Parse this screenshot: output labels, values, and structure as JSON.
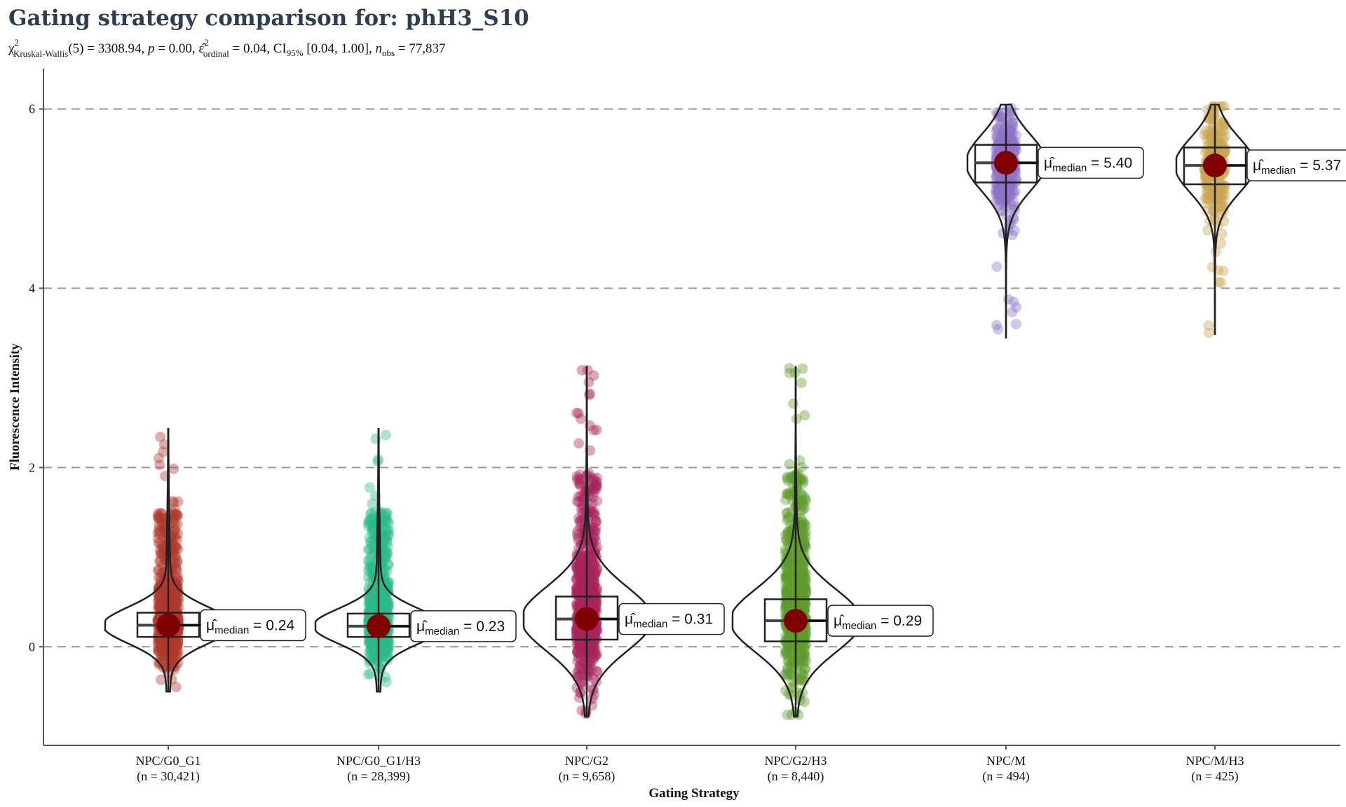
{
  "chart_data": {
    "type": "violin",
    "title": "Gating strategy comparison for: phH3_S10",
    "subtitle": {
      "chi": "χ",
      "chi_sup": "2",
      "chi_sub": "Kruskal-Wallis",
      "part1": "(5) = 3308.94, ",
      "p_sym": "p",
      "part2": " = 0.00, ",
      "eps": "ε̂",
      "eps_sup": "2",
      "eps_sub": "ordinal",
      "part3": " = 0.04, CI",
      "ci_sub": "95%",
      "part4": " [0.04, 1.00], ",
      "n_sym": "n",
      "n_sub": "obs",
      "part5": " = 77,837"
    },
    "xlabel": "Gating Strategy",
    "ylabel": "Fluorescence Intensity",
    "ylim": [
      -1.1,
      6.45
    ],
    "yticks": [
      0,
      2,
      4,
      6
    ],
    "ytick_labels": [
      "0",
      "2",
      "4",
      "6"
    ],
    "grid": "horizontal dashed at y ticks",
    "median_label_prefix": "μ̂",
    "median_label_sub": "median",
    "groups": [
      {
        "name": "NPC/G0_G1",
        "n_label": "(n = 30,421)",
        "color": "#b03a2e",
        "median": 0.24,
        "median_label": "0.24",
        "q1": 0.11,
        "q3": 0.38,
        "min": -0.5,
        "max": 2.43
      },
      {
        "name": "NPC/G0_G1/H3",
        "n_label": "(n = 28,399)",
        "color": "#2db889",
        "median": 0.23,
        "median_label": "0.23",
        "q1": 0.11,
        "q3": 0.37,
        "min": -0.5,
        "max": 2.43
      },
      {
        "name": "NPC/G2",
        "n_label": "(n = 9,658)",
        "color": "#a8255c",
        "median": 0.31,
        "median_label": "0.31",
        "q1": 0.08,
        "q3": 0.56,
        "min": -0.78,
        "max": 3.13
      },
      {
        "name": "NPC/G2/H3",
        "n_label": "(n = 8,440)",
        "color": "#5e9a2e",
        "median": 0.29,
        "median_label": "0.29",
        "q1": 0.06,
        "q3": 0.53,
        "min": -0.78,
        "max": 3.13
      },
      {
        "name": "NPC/M",
        "n_label": "(n = 494)",
        "color": "#8d72c8",
        "median": 5.4,
        "median_label": "5.40",
        "q1": 5.18,
        "q3": 5.6,
        "min": 3.44,
        "max": 6.05
      },
      {
        "name": "NPC/M/H3",
        "n_label": "(n = 425)",
        "color": "#c9a44f",
        "median": 5.37,
        "median_label": "5.37",
        "q1": 5.16,
        "q3": 5.57,
        "min": 3.48,
        "max": 6.05
      }
    ]
  }
}
